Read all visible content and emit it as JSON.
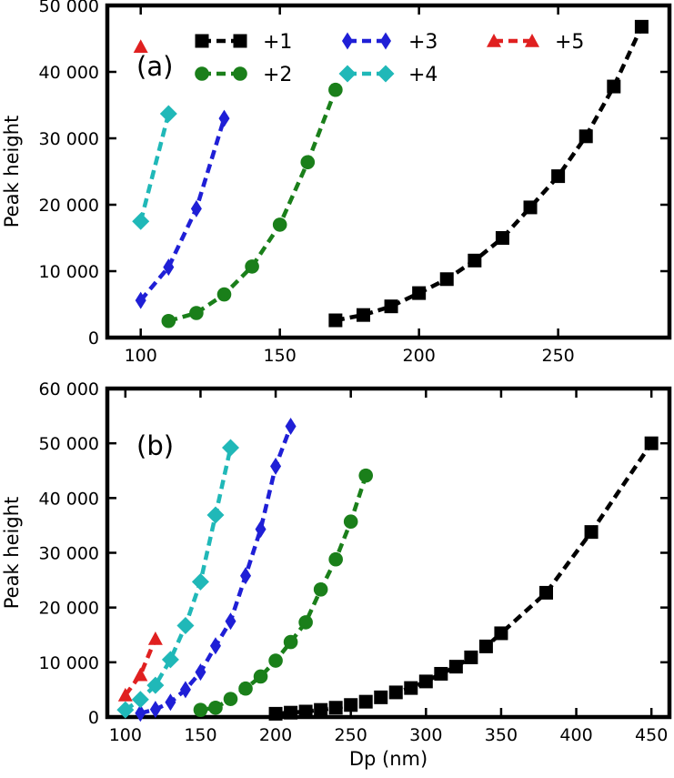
{
  "chart_data": [
    {
      "type": "line",
      "panel_label": "(a)",
      "ylabel": "Peak height",
      "xlabel": "",
      "xlim": [
        88,
        290
      ],
      "ylim": [
        0,
        50000
      ],
      "xticks": [
        100,
        150,
        200,
        250
      ],
      "xtick_labels": [
        "100",
        "150",
        "200",
        "250"
      ],
      "yticks": [
        0,
        10000,
        20000,
        30000,
        40000,
        50000
      ],
      "ytick_labels": [
        "0",
        "10 000",
        "20 000",
        "30 000",
        "40 000",
        "50 000"
      ],
      "legend_placement": "top",
      "series": [
        {
          "name": "+1",
          "color": "#000000",
          "marker": "square",
          "x": [
            170,
            180,
            190,
            200,
            210,
            220,
            230,
            240,
            250,
            260,
            270,
            280
          ],
          "y": [
            2600,
            3400,
            4700,
            6700,
            8800,
            11600,
            15000,
            19600,
            24300,
            30300,
            37800,
            46800
          ]
        },
        {
          "name": "+2",
          "color": "#1a7f1a",
          "marker": "circle",
          "x": [
            110,
            120,
            130,
            140,
            150,
            160,
            170
          ],
          "y": [
            2500,
            3700,
            6500,
            10700,
            17000,
            26400,
            37300
          ]
        },
        {
          "name": "+3",
          "color": "#1f1fd6",
          "marker": "thin-diamond",
          "x": [
            100,
            110,
            120,
            130
          ],
          "y": [
            5600,
            10600,
            19400,
            33000
          ]
        },
        {
          "name": "+4",
          "color": "#20b8b8",
          "marker": "diamond",
          "x": [
            100,
            110
          ],
          "y": [
            17500,
            33700
          ]
        },
        {
          "name": "+5",
          "color": "#e02020",
          "marker": "triangle",
          "x": [
            100
          ],
          "y": [
            43800
          ]
        }
      ]
    },
    {
      "type": "line",
      "panel_label": "(b)",
      "ylabel": "Peak height",
      "xlabel": "Dp (nm)",
      "xlim": [
        88,
        462
      ],
      "ylim": [
        0,
        60000
      ],
      "xticks": [
        100,
        150,
        200,
        250,
        300,
        350,
        400,
        450
      ],
      "xtick_labels": [
        "100",
        "150",
        "200",
        "250",
        "300",
        "350",
        "400",
        "450"
      ],
      "yticks": [
        0,
        10000,
        20000,
        30000,
        40000,
        50000,
        60000
      ],
      "ytick_labels": [
        "0",
        "10 000",
        "20 000",
        "30 000",
        "40 000",
        "50 000",
        "60 000"
      ],
      "series": [
        {
          "name": "+1",
          "color": "#000000",
          "marker": "square",
          "x": [
            200,
            210,
            220,
            230,
            240,
            250,
            260,
            270,
            280,
            290,
            300,
            310,
            320,
            330,
            340,
            350,
            380,
            410,
            450
          ],
          "y": [
            600,
            800,
            1000,
            1300,
            1700,
            2200,
            2800,
            3600,
            4500,
            5300,
            6500,
            7900,
            9200,
            10900,
            12900,
            15300,
            22700,
            33800,
            50000
          ]
        },
        {
          "name": "+2",
          "color": "#1a7f1a",
          "marker": "circle",
          "x": [
            150,
            160,
            170,
            180,
            190,
            200,
            210,
            220,
            230,
            240,
            250,
            260
          ],
          "y": [
            1300,
            1700,
            3300,
            5200,
            7400,
            10300,
            13700,
            17300,
            23300,
            28800,
            35700,
            44100
          ]
        },
        {
          "name": "+3",
          "color": "#1f1fd6",
          "marker": "thin-diamond",
          "x": [
            110,
            120,
            130,
            140,
            150,
            160,
            170,
            180,
            190,
            200,
            210
          ],
          "y": [
            700,
            1400,
            2700,
            5000,
            8200,
            13000,
            17500,
            25800,
            34300,
            45800,
            53100
          ]
        },
        {
          "name": "+4",
          "color": "#20b8b8",
          "marker": "diamond",
          "x": [
            100,
            110,
            120,
            130,
            140,
            150,
            160,
            170
          ],
          "y": [
            1300,
            3200,
            5800,
            10500,
            16700,
            24700,
            36900,
            49200
          ]
        },
        {
          "name": "+5",
          "color": "#e02020",
          "marker": "triangle",
          "x": [
            100,
            110,
            120
          ],
          "y": [
            4000,
            7700,
            14300
          ]
        }
      ]
    }
  ]
}
